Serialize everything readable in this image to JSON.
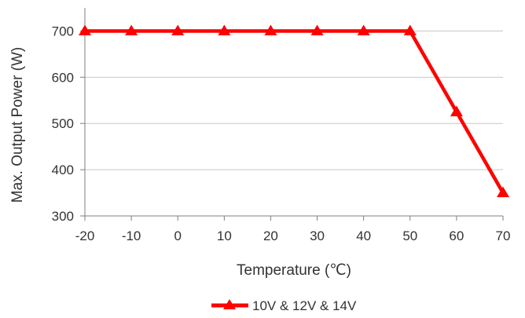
{
  "chart_data": {
    "type": "line",
    "title": "",
    "xlabel": "Temperature (℃)",
    "ylabel": "Max. Output Power (W)",
    "x": [
      -20,
      -10,
      0,
      10,
      20,
      30,
      40,
      50,
      60,
      70
    ],
    "xticks": [
      "-20",
      "-10",
      "0",
      "10",
      "20",
      "30",
      "40",
      "50",
      "60",
      "70"
    ],
    "yticks": [
      "300",
      "400",
      "500",
      "600",
      "700"
    ],
    "xlim": [
      -20,
      70
    ],
    "ylim": [
      300,
      750
    ],
    "grid": "horizontal",
    "legend_position": "bottom",
    "series": [
      {
        "name": "10V & 12V & 14V",
        "color": "#ff0000",
        "marker": "triangle",
        "values": [
          700,
          700,
          700,
          700,
          700,
          700,
          700,
          700,
          525,
          350
        ]
      }
    ]
  }
}
